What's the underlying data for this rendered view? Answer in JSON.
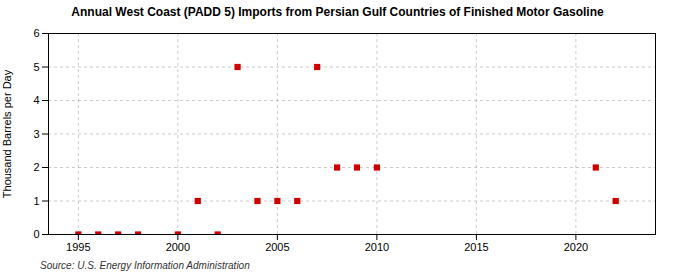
{
  "chart_data": {
    "type": "scatter",
    "title": "Annual West Coast (PADD 5) Imports from Persian Gulf Countries of Finished Motor Gasoline",
    "ylabel": "Thousand Barrels per Day",
    "source": "Source: U.S. Energy Information Administration",
    "x": [
      1995,
      1996,
      1997,
      1998,
      2000,
      2001,
      2002,
      2003,
      2004,
      2005,
      2006,
      2007,
      2008,
      2009,
      2010,
      2021,
      2022
    ],
    "values": [
      0,
      0,
      0,
      0,
      0,
      1,
      0,
      5,
      1,
      1,
      1,
      5,
      2,
      2,
      2,
      2,
      1
    ],
    "color": "#cc0000",
    "marker": "square",
    "xlim": [
      1993.5,
      2024
    ],
    "ylim": [
      0,
      6
    ],
    "xticks": [
      1995,
      2000,
      2005,
      2010,
      2015,
      2020
    ],
    "yticks": [
      0,
      1,
      2,
      3,
      4,
      5,
      6
    ],
    "grid": true
  }
}
